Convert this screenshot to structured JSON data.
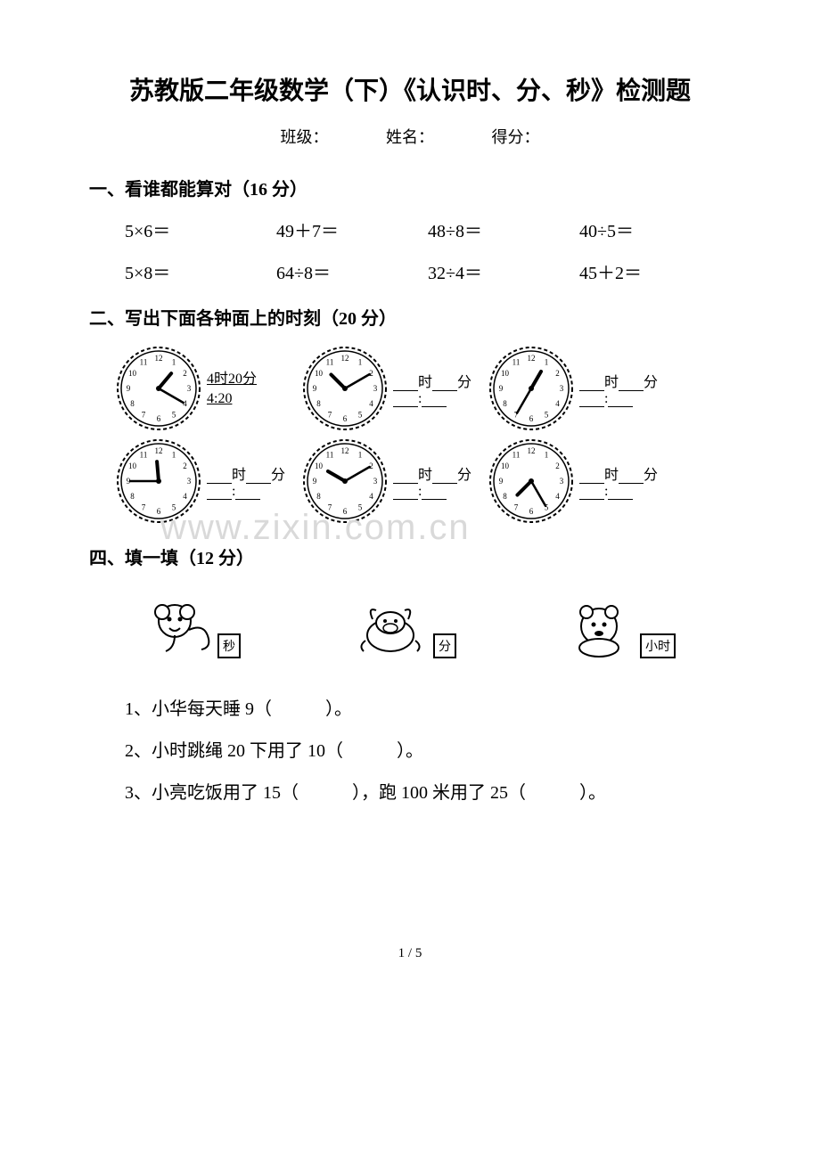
{
  "title": "苏教版二年级数学（下）《认识时、分、秒》检测题",
  "header": {
    "class_label": "班级：",
    "name_label": "姓名：",
    "score_label": "得分："
  },
  "section1": {
    "heading": "一、看谁都能算对（16 分）",
    "items": [
      "5×6＝",
      "49＋7＝",
      "48÷8＝",
      "40÷5＝",
      "5×8＝",
      "64÷8＝",
      "32÷4＝",
      "45＋2＝"
    ]
  },
  "section2": {
    "heading": "二、写出下面各钟面上的时刻（20 分）",
    "example_top": "4时20分",
    "example_bottom": "4:20",
    "blank_top_hm": "时",
    "blank_top_min": "分",
    "clock_numbers": [
      "12",
      "1",
      "2",
      "3",
      "4",
      "5",
      "6",
      "7",
      "8",
      "9",
      "10",
      "11"
    ],
    "clock_style": {
      "radius": 46,
      "stroke": "#000000",
      "fill": "#ffffff",
      "number_fontsize": 9,
      "hour_hand_len": 22,
      "minute_hand_len": 32,
      "hand_stroke": "#000000"
    },
    "clocks": [
      {
        "hour_angle": 40,
        "minute_angle": 120
      },
      {
        "hour_angle": 315,
        "minute_angle": 60
      },
      {
        "hour_angle": 30,
        "minute_angle": 210
      },
      {
        "hour_angle": 355,
        "minute_angle": 270
      },
      {
        "hour_angle": 300,
        "minute_angle": 60
      },
      {
        "hour_angle": 225,
        "minute_angle": 150
      }
    ]
  },
  "section4": {
    "heading": "四、填一填（12 分）",
    "animals": [
      {
        "label": "秒"
      },
      {
        "label": "分"
      },
      {
        "label": "小时"
      }
    ],
    "items": [
      "1、小华每天睡 9（　　　）。",
      "2、小时跳绳 20 下用了 10（　　　）。",
      "3、小亮吃饭用了 15（　　　），跑 100 米用了 25（　　　）。"
    ]
  },
  "watermark": "www.zixin.com.cn",
  "page_number": "1 / 5",
  "colors": {
    "text": "#000000",
    "bg": "#ffffff",
    "watermark": "#d9d9d9"
  }
}
